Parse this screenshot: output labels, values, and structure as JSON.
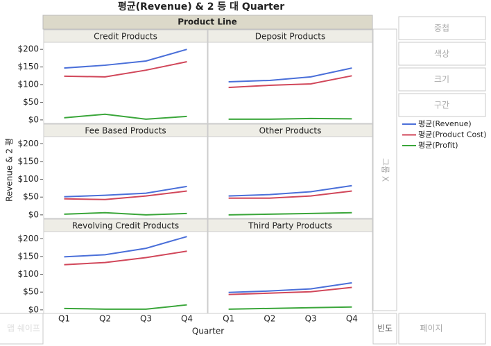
{
  "chart_data": {
    "type": "line",
    "title": "평균(Revenue) & 2 등 대 Quarter",
    "facet_label": "Product Line",
    "x_label": "Quarter",
    "y_label": "Revenue & 2 평",
    "categories": [
      "Q1",
      "Q2",
      "Q3",
      "Q4"
    ],
    "ylim": [
      -10,
      220
    ],
    "yticks": [
      {
        "value": 0,
        "label": "$0"
      },
      {
        "value": 50,
        "label": "$50"
      },
      {
        "value": 100,
        "label": "$100"
      },
      {
        "value": 150,
        "label": "$150"
      },
      {
        "value": 200,
        "label": "$200"
      }
    ],
    "series": [
      {
        "name": "평균(Revenue)",
        "color": "#4a6fd9"
      },
      {
        "name": "평균(Product Cost)",
        "color": "#d1475a"
      },
      {
        "name": "평균(Profit)",
        "color": "#3aa63a"
      }
    ],
    "panels": [
      {
        "title": "Credit Products",
        "series": [
          {
            "values": [
              147,
              155,
              167,
              200
            ]
          },
          {
            "values": [
              124,
              122,
              141,
              165
            ]
          },
          {
            "values": [
              6,
              16,
              2,
              10
            ]
          }
        ]
      },
      {
        "title": "Deposit Products",
        "series": [
          {
            "values": [
              108,
              112,
              122,
              147
            ]
          },
          {
            "values": [
              92,
              98,
              102,
              125
            ]
          },
          {
            "values": [
              2,
              2,
              4,
              3
            ]
          }
        ]
      },
      {
        "title": "Fee Based Products",
        "series": [
          {
            "values": [
              51,
              55,
              61,
              80
            ]
          },
          {
            "values": [
              45,
              43,
              53,
              67
            ]
          },
          {
            "values": [
              2,
              6,
              0,
              4
            ]
          }
        ]
      },
      {
        "title": "Other Products",
        "series": [
          {
            "values": [
              53,
              57,
              65,
              82
            ]
          },
          {
            "values": [
              47,
              47,
              53,
              67
            ]
          },
          {
            "values": [
              0,
              2,
              4,
              6
            ]
          }
        ]
      },
      {
        "title": "Revolving Credit Products",
        "series": [
          {
            "values": [
              149,
              155,
              173,
              206
            ]
          },
          {
            "values": [
              127,
              133,
              147,
              165
            ]
          },
          {
            "values": [
              4,
              2,
              2,
              14
            ]
          }
        ]
      },
      {
        "title": "Third Party Products",
        "series": [
          {
            "values": [
              49,
              53,
              59,
              76
            ]
          },
          {
            "values": [
              43,
              47,
              51,
              63
            ]
          },
          {
            "values": [
              2,
              4,
              6,
              8
            ]
          }
        ]
      }
    ]
  },
  "ui": {
    "overlay": "중첩",
    "color": "색상",
    "size": "크기",
    "interval": "구간",
    "group_x": "그룹 X",
    "freq": "빈도",
    "page": "페이지",
    "map_shape": "맵 쉐이프"
  }
}
